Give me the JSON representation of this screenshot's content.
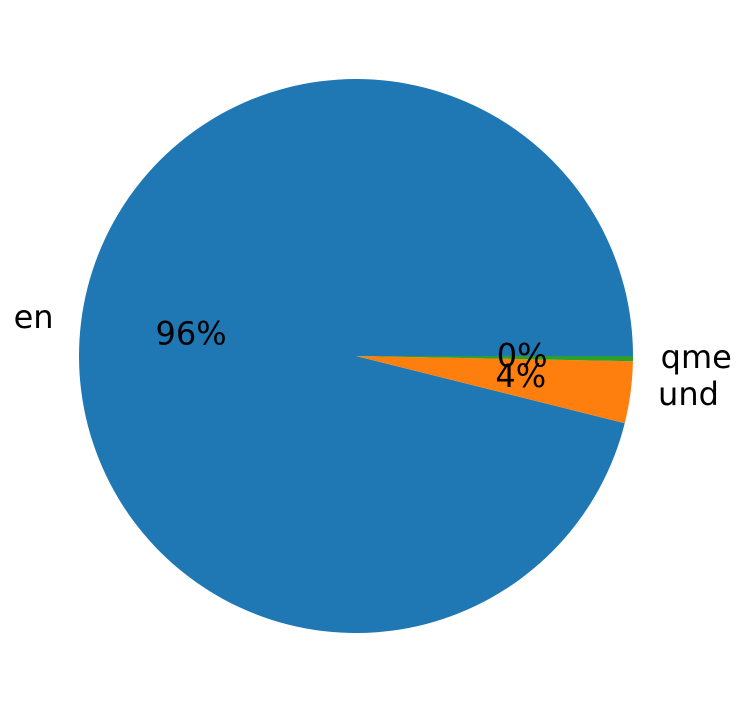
{
  "chart_data": {
    "type": "pie",
    "categories": [
      "en",
      "und",
      "qme"
    ],
    "values": [
      96.1,
      3.6,
      0.3
    ],
    "value_labels": [
      "96%",
      "4%",
      "0%"
    ],
    "colors": [
      "#1f77b4",
      "#ff7f0e",
      "#2ca02c"
    ],
    "startangle": 0,
    "counterclockwise": true
  }
}
